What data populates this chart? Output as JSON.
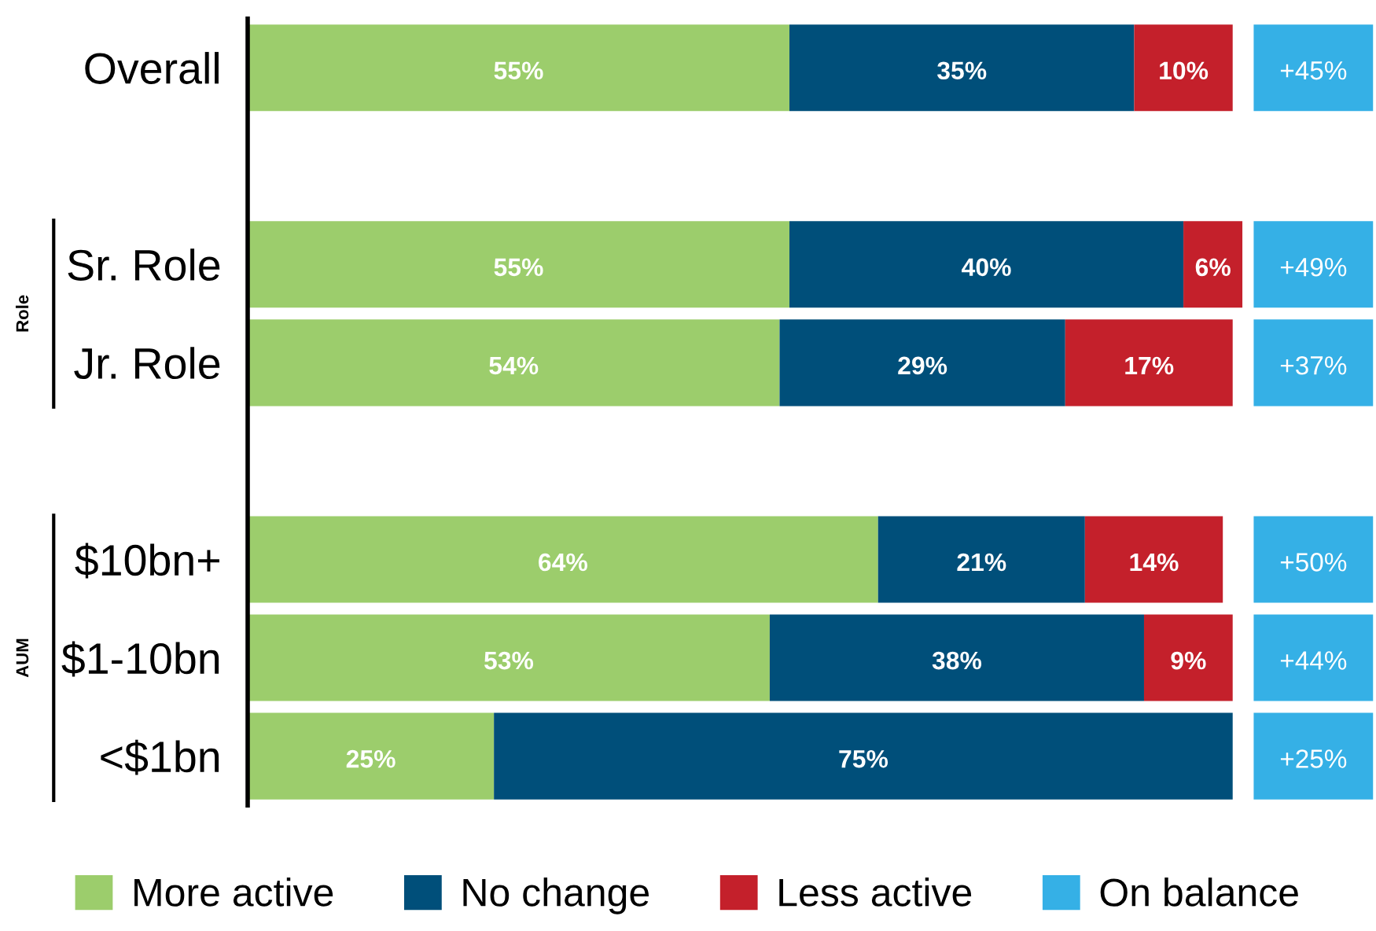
{
  "chart_data": [
    {
      "type": "bar",
      "orientation": "horizontal",
      "stacked": true,
      "categories": [
        "Overall",
        null,
        "Sr. Role",
        "Jr. Role",
        null,
        "$10bn+",
        "$1-10bn",
        "<$1bn"
      ],
      "series": [
        {
          "name": "More active",
          "color": "#9ccd6c",
          "values": [
            55,
            null,
            55,
            54,
            null,
            64,
            53,
            25
          ],
          "value_labels": [
            "55%",
            null,
            "55%",
            "54%",
            null,
            "64%",
            "53%",
            "25%"
          ]
        },
        {
          "name": "No change",
          "color": "#004f7a",
          "values": [
            35,
            null,
            40,
            29,
            null,
            21,
            38,
            75
          ],
          "value_labels": [
            "35%",
            null,
            "40%",
            "29%",
            null,
            "21%",
            "38%",
            "75%"
          ]
        },
        {
          "name": "Less active",
          "color": "#c4202b",
          "values": [
            10,
            null,
            6,
            17,
            null,
            14,
            9,
            null
          ],
          "value_labels": [
            "10%",
            null,
            "6%",
            "17%",
            null,
            "14%",
            "9%",
            null
          ]
        }
      ],
      "annotations": [
        "Role",
        "AUM"
      ],
      "legend": "bottom",
      "tick_labels": "y",
      "grid": false
    },
    {
      "type": "other",
      "categories": [
        null,
        null,
        null,
        null,
        null,
        null,
        null,
        null
      ],
      "series": [
        {
          "name": "On balance",
          "color": "#35b0e6",
          "values": [
            45,
            null,
            49,
            37,
            null,
            50,
            44,
            25
          ],
          "value_labels": [
            "+45%",
            null,
            "+49%",
            "+37%",
            null,
            "+50%",
            "+44%",
            "+25%"
          ]
        }
      ]
    }
  ]
}
